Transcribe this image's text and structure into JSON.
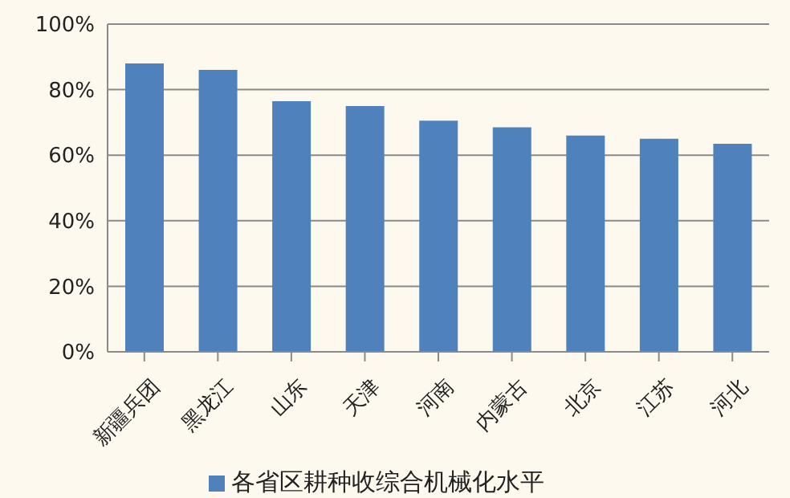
{
  "chart_data": {
    "type": "bar",
    "categories": [
      "新疆兵团",
      "黑龙江",
      "山东",
      "天津",
      "河南",
      "内蒙古",
      "北京",
      "江苏",
      "河北"
    ],
    "series": [
      {
        "name": "各省区耕种收综合机械化水平",
        "color": "#4f81bd",
        "values": [
          88,
          86,
          76.5,
          75,
          70.5,
          68.5,
          66,
          65,
          63.5
        ]
      }
    ],
    "ylim": [
      0,
      100
    ],
    "yticks": [
      {
        "value": 0,
        "label": "0%"
      },
      {
        "value": 20,
        "label": "20%"
      },
      {
        "value": 40,
        "label": "40%"
      },
      {
        "value": 60,
        "label": "60%"
      },
      {
        "value": 80,
        "label": "80%"
      },
      {
        "value": 100,
        "label": "100%"
      }
    ],
    "grid": "y",
    "legend": "bottom"
  }
}
